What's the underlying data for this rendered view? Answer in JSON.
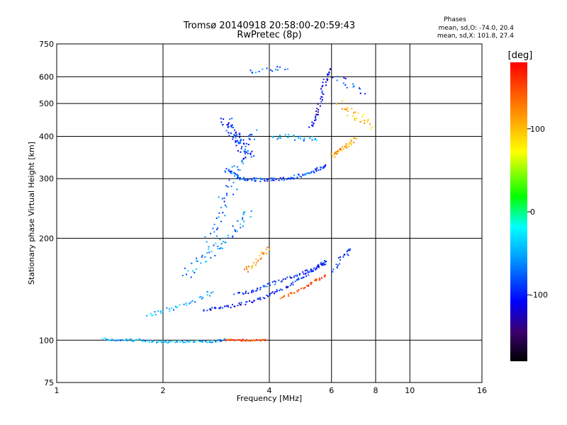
{
  "chart_data": {
    "type": "scatter",
    "title": "Tromsø 20140918 20:58:00-20:59:43",
    "subtitle": "RwPretec (8p)",
    "xlabel": "Frequency [MHz]",
    "ylabel": "Stationary phase Virtual Height [km]",
    "x_scale": "log",
    "y_scale": "log",
    "xlim": [
      1,
      16
    ],
    "ylim": [
      75,
      750
    ],
    "x_ticks": [
      1,
      2,
      4,
      6,
      8,
      10,
      16
    ],
    "x_tick_labels": [
      "1",
      "2",
      "4",
      "6",
      "8",
      "10",
      "16"
    ],
    "y_ticks": [
      75,
      100,
      200,
      300,
      400,
      500,
      600,
      750
    ],
    "y_tick_labels": [
      "75",
      "100",
      "200",
      "300",
      "400",
      "500",
      "600",
      "750"
    ],
    "grid": true,
    "phases_note": {
      "title": "Phases",
      "line1": "mean, sd,O: -74.0, 20.4",
      "line2": "mean, sd,X: 101.8, 27.4"
    },
    "colorbar": {
      "label": "[deg]",
      "range": [
        -180,
        180
      ],
      "ticks": [
        100,
        0,
        -100
      ],
      "tick_labels": [
        "100",
        "0",
        "-100"
      ]
    },
    "traces": [
      {
        "x": [
          1.35,
          1.5,
          1.7,
          1.9,
          2.1,
          2.4,
          2.7,
          3.0
        ],
        "y": [
          101,
          100,
          100,
          99,
          99,
          99,
          99,
          100
        ],
        "phase": -50,
        "n": 95,
        "jitter": 0.8
      },
      {
        "x": [
          3.0,
          3.3,
          3.6,
          3.9
        ],
        "y": [
          100,
          100,
          100,
          100
        ],
        "phase": 150,
        "n": 40,
        "jitter": 0.6
      },
      {
        "x": [
          1.8,
          2.0,
          2.2,
          2.5,
          2.8
        ],
        "y": [
          118,
          122,
          126,
          132,
          140
        ],
        "phase": -50,
        "n": 35,
        "jitter": 1.5
      },
      {
        "x": [
          2.6,
          3.0,
          3.5,
          4.0,
          4.6,
          5.2,
          5.8
        ],
        "y": [
          123,
          125,
          129,
          136,
          146,
          158,
          172
        ],
        "phase": -100,
        "n": 90,
        "jitter": 1.0
      },
      {
        "x": [
          3.2,
          3.6,
          4.0,
          4.5,
          5.0,
          5.5,
          5.8
        ],
        "y": [
          136,
          140,
          146,
          152,
          158,
          164,
          170
        ],
        "phase": -95,
        "n": 70,
        "jitter": 1.0
      },
      {
        "x": [
          4.3,
          4.8,
          5.3,
          5.8
        ],
        "y": [
          133,
          140,
          148,
          156
        ],
        "phase": 150,
        "n": 35,
        "jitter": 1.0
      },
      {
        "x": [
          3.4,
          3.7,
          4.0
        ],
        "y": [
          160,
          170,
          190
        ],
        "phase": 120,
        "n": 25,
        "jitter": 2.0
      },
      {
        "x": [
          2.3,
          2.6,
          2.9,
          3.2,
          3.5
        ],
        "y": [
          155,
          175,
          190,
          210,
          240
        ],
        "phase": -60,
        "n": 60,
        "jitter": 3.5
      },
      {
        "x": [
          2.7,
          3.0,
          3.3,
          3.6
        ],
        "y": [
          200,
          260,
          330,
          420
        ],
        "phase": -75,
        "n": 60,
        "jitter": 4.0
      },
      {
        "x": [
          3.0,
          3.3,
          3.8,
          4.5,
          5.2,
          5.8
        ],
        "y": [
          320,
          300,
          297,
          300,
          312,
          330
        ],
        "phase": -85,
        "n": 110,
        "jitter": 1.2
      },
      {
        "x": [
          3.0,
          3.2,
          3.5
        ],
        "y": [
          450,
          400,
          350
        ],
        "phase": -95,
        "n": 70,
        "jitter": 4.0
      },
      {
        "x": [
          4.0,
          4.5,
          5.0,
          5.5
        ],
        "y": [
          400,
          400,
          395,
          390
        ],
        "phase": -50,
        "n": 30,
        "jitter": 2.0
      },
      {
        "x": [
          5.2,
          5.5,
          5.7,
          5.9
        ],
        "y": [
          420,
          480,
          560,
          630
        ],
        "phase": -110,
        "n": 45,
        "jitter": 1.5
      },
      {
        "x": [
          3.5,
          4.0,
          4.5
        ],
        "y": [
          620,
          630,
          640
        ],
        "phase": -70,
        "n": 15,
        "jitter": 1.5
      },
      {
        "x": [
          6.0,
          6.3,
          6.6,
          7.0
        ],
        "y": [
          350,
          360,
          375,
          395
        ],
        "phase": 110,
        "n": 40,
        "jitter": 1.5
      },
      {
        "x": [
          6.3,
          6.8,
          7.3,
          7.8
        ],
        "y": [
          500,
          470,
          450,
          430
        ],
        "phase": 100,
        "n": 30,
        "jitter": 3.0
      },
      {
        "x": [
          6.1,
          6.3,
          6.6,
          6.8
        ],
        "y": [
          160,
          170,
          180,
          185
        ],
        "phase": -100,
        "n": 20,
        "jitter": 2.0
      },
      {
        "x": [
          6.0,
          6.5,
          7.0,
          7.5
        ],
        "y": [
          600,
          580,
          560,
          540
        ],
        "phase": -90,
        "n": 15,
        "jitter": 3.0
      }
    ]
  }
}
